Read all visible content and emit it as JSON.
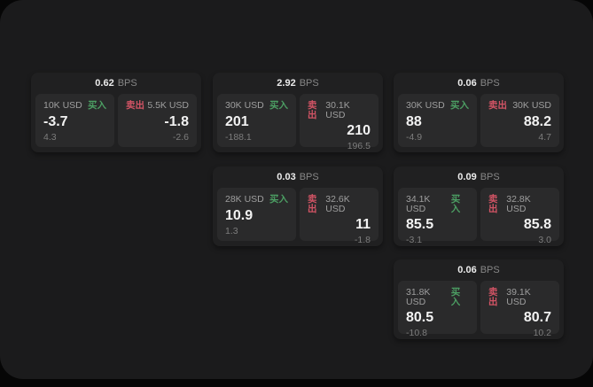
{
  "labels": {
    "bps_unit": "BPS",
    "buy": "买入",
    "sell": "卖出"
  },
  "colors": {
    "buy_green": "#4c9e63",
    "sell_red": "#d25465",
    "panel_bg": "#2a2a2b",
    "card_bg": "#202021",
    "window_bg": "#1b1b1c"
  },
  "cards": [
    {
      "bps": "0.62",
      "buy": {
        "notional": "10K USD",
        "value": "-3.7",
        "sub": "4.3"
      },
      "sell": {
        "notional": "5.5K USD",
        "value": "-1.8",
        "sub": "-2.6"
      }
    },
    {
      "bps": "2.92",
      "buy": {
        "notional": "30K USD",
        "value": "201",
        "sub": "-188.1"
      },
      "sell": {
        "notional": "30.1K USD",
        "value": "210",
        "sub": "196.5"
      }
    },
    {
      "bps": "0.06",
      "buy": {
        "notional": "30K USD",
        "value": "88",
        "sub": "-4.9"
      },
      "sell": {
        "notional": "30K USD",
        "value": "88.2",
        "sub": "4.7"
      }
    },
    {
      "bps": "0.03",
      "buy": {
        "notional": "28K USD",
        "value": "10.9",
        "sub": "1.3"
      },
      "sell": {
        "notional": "32.6K USD",
        "value": "11",
        "sub": "-1.8"
      }
    },
    {
      "bps": "0.09",
      "buy": {
        "notional": "34.1K USD",
        "value": "85.5",
        "sub": "-3.1"
      },
      "sell": {
        "notional": "32.8K USD",
        "value": "85.8",
        "sub": "3.0"
      }
    },
    {
      "bps": "0.06",
      "buy": {
        "notional": "31.8K USD",
        "value": "80.5",
        "sub": "-10.8"
      },
      "sell": {
        "notional": "39.1K USD",
        "value": "80.7",
        "sub": "10.2"
      }
    }
  ]
}
